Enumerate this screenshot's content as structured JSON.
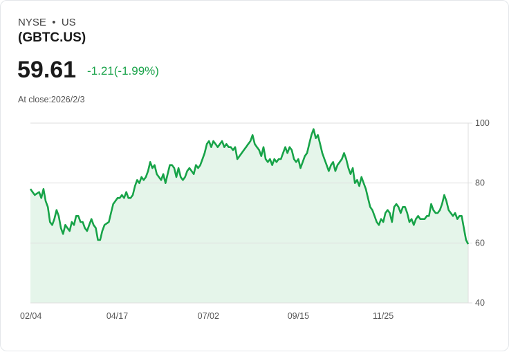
{
  "header": {
    "exchange": "NYSE",
    "dot": "•",
    "country": "US",
    "symbol": "(GBTC.US)",
    "price": "59.61",
    "change": "-1.21(-1.99%)",
    "close_label": "At close:2026/2/3"
  },
  "colors": {
    "line": "#17a348",
    "fill": "#e5f5ea",
    "grid": "#dedede"
  },
  "chart_data": {
    "type": "area",
    "ylim": [
      40,
      100
    ],
    "yticks": [
      "100",
      "80",
      "60",
      "40"
    ],
    "ytick_values": [
      100,
      80,
      60,
      40
    ],
    "xticks": [
      {
        "label": "02/04",
        "day": 0
      },
      {
        "label": "04/17",
        "day": 72
      },
      {
        "label": "07/02",
        "day": 148
      },
      {
        "label": "09/15",
        "day": 223
      },
      {
        "label": "11/25",
        "day": 294
      }
    ],
    "x_span_days": 365,
    "values": [
      78,
      77,
      76,
      76.5,
      77,
      75,
      78,
      74,
      72,
      67,
      66,
      68,
      71,
      69,
      65,
      63,
      66,
      65,
      64,
      67,
      66,
      69,
      69,
      67,
      67,
      65,
      64,
      66,
      68,
      66,
      65,
      61,
      61,
      64,
      66,
      66.5,
      67,
      70,
      73,
      74,
      75,
      75,
      76,
      75,
      77,
      75,
      75,
      76,
      79,
      81,
      80,
      82,
      81,
      82,
      84,
      87,
      85,
      86,
      83,
      82,
      81,
      83,
      80,
      83,
      86,
      86,
      85,
      82,
      85,
      82,
      81,
      82,
      84,
      85,
      84,
      83,
      86,
      85,
      86,
      88,
      90,
      93,
      94,
      92,
      94,
      93,
      92,
      93,
      94,
      92,
      93,
      92,
      92,
      91,
      92,
      88,
      89,
      90,
      91,
      92,
      93,
      94,
      96,
      93,
      92,
      91,
      89,
      92,
      88,
      87,
      88,
      86,
      88,
      87,
      88,
      88,
      90,
      92,
      90,
      92,
      91,
      88,
      87,
      88,
      85,
      87,
      89,
      90,
      93,
      96,
      98,
      95,
      96,
      93,
      90,
      88,
      86,
      84,
      86,
      87,
      84,
      86,
      87,
      88,
      90,
      88,
      85,
      83,
      85,
      80,
      81,
      79,
      82,
      80,
      78,
      75,
      72,
      71,
      69,
      67,
      66,
      68,
      67,
      70,
      71,
      70,
      67,
      72,
      73,
      72,
      70,
      72,
      72,
      70,
      67,
      68,
      66,
      68,
      69,
      68,
      68,
      68,
      69,
      69,
      73,
      71,
      70,
      70,
      71,
      73,
      76,
      74,
      71,
      70,
      69,
      70,
      68,
      69,
      69,
      65,
      61,
      59.61
    ]
  }
}
